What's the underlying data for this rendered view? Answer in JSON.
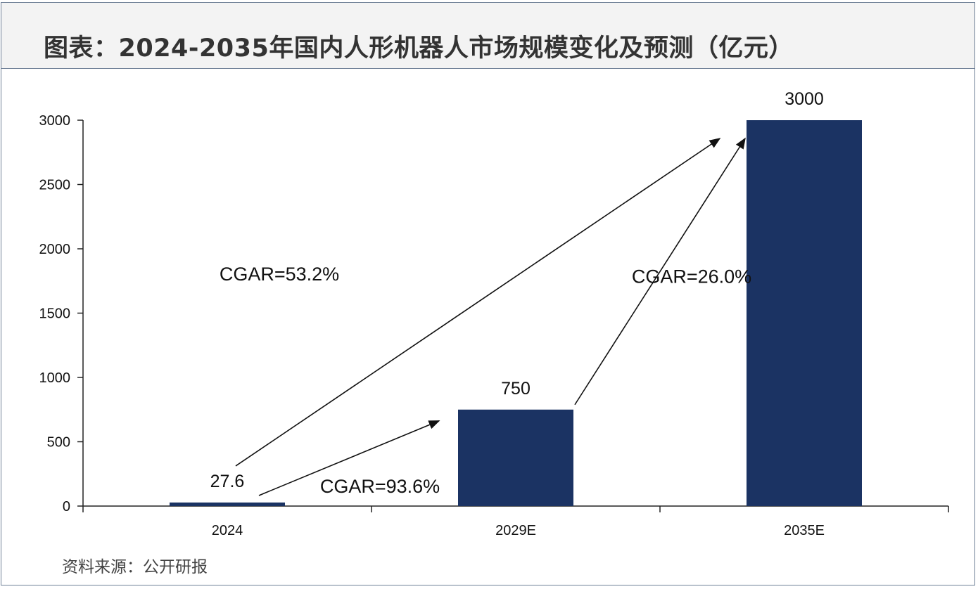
{
  "title": "图表：2024-2035年国内人形机器人市场规模变化及预测（亿元）",
  "source": "资料来源：公开研报",
  "colors": {
    "bar": "#1b3363",
    "axis": "#222222",
    "frame": "#6e7f96",
    "header_bg": "#f3f3f3"
  },
  "chart_data": {
    "type": "bar",
    "title": "图表：2024-2035年国内人形机器人市场规模变化及预测（亿元）",
    "categories": [
      "2024",
      "2029E",
      "2035E"
    ],
    "values": [
      27.6,
      750,
      3000
    ],
    "data_labels": [
      "27.6",
      "750",
      "3000"
    ],
    "ylim": [
      0,
      3000
    ],
    "yticks": [
      0,
      500,
      1000,
      1500,
      2000,
      2500,
      3000
    ],
    "xlabel": "",
    "ylabel": "",
    "grid": false,
    "annotations": [
      {
        "text": "CGAR=53.2%",
        "from": "2024",
        "to": "2035E"
      },
      {
        "text": "CGAR=93.6%",
        "from": "2024",
        "to": "2029E"
      },
      {
        "text": "CGAR=26.0%",
        "from": "2029E",
        "to": "2035E"
      }
    ]
  }
}
